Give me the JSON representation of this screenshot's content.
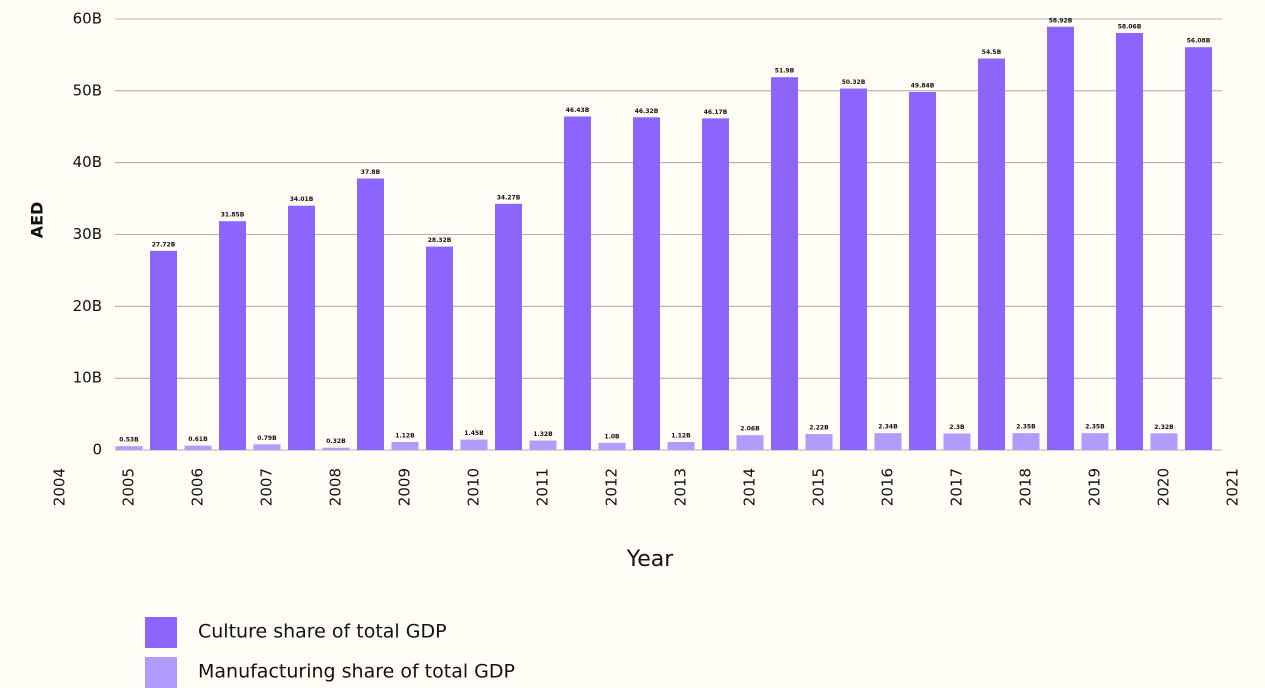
{
  "chart_data": {
    "type": "bar",
    "x_label": "Year",
    "y_label": "AED",
    "xlim": [
      2004,
      2021
    ],
    "xticks": [
      2004,
      2005,
      2006,
      2007,
      2008,
      2009,
      2010,
      2011,
      2012,
      2013,
      2014,
      2015,
      2016,
      2017,
      2018,
      2019,
      2020,
      2021
    ],
    "ylim": [
      0,
      60
    ],
    "yticks": [
      0,
      {
        "value": 10,
        "label": "10B"
      },
      {
        "value": 20,
        "label": "20B"
      },
      {
        "value": 30,
        "label": "30B"
      },
      {
        "value": 40,
        "label": "40B"
      },
      {
        "value": 50,
        "label": "50B"
      },
      {
        "value": 60,
        "label": "60B"
      }
    ],
    "grid": true,
    "legend": "bottom-left",
    "series": [
      {
        "name": "Culture share of total GDP",
        "color": "#8c66fc",
        "x": [
          2005.5,
          2006.5,
          2007.5,
          2008.5,
          2009.5,
          2010.5,
          2011.5,
          2012.5,
          2013.5,
          2014.5,
          2015.5,
          2016.5,
          2017.5,
          2018.5,
          2019.5,
          2020.5
        ],
        "values": [
          27.72,
          31.85,
          34.01,
          37.8,
          28.32,
          34.27,
          46.43,
          46.32,
          46.17,
          51.9,
          50.32,
          49.84,
          54.5,
          58.92,
          58.06,
          56.08
        ],
        "value_labels": [
          "27.72B",
          "31.85B",
          "34.01B",
          "37.8B",
          "28.32B",
          "34.27B",
          "46.43B",
          "46.32B",
          "46.17B",
          "51.9B",
          "50.32B",
          "49.84B",
          "54.5B",
          "58.92B",
          "58.06B",
          "56.08B"
        ]
      },
      {
        "name": "Manufacturing share of total GDP",
        "color": "#b19bfb",
        "x": [
          2005,
          2006,
          2007,
          2008,
          2009,
          2010,
          2011,
          2012,
          2013,
          2014,
          2015,
          2016,
          2017,
          2018,
          2019,
          2020
        ],
        "values": [
          0.53,
          0.61,
          0.79,
          0.32,
          1.12,
          1.45,
          1.32,
          1.0,
          1.12,
          2.06,
          2.22,
          2.34,
          2.3,
          2.35,
          2.35,
          2.32
        ],
        "value_labels": [
          "0.53B",
          "0.61B",
          "0.79B",
          "0.32B",
          "1.12B",
          "1.45B",
          "1.32B",
          "1.0B",
          "1.12B",
          "2.06B",
          "2.22B",
          "2.34B",
          "2.3B",
          "2.35B",
          "2.35B",
          "2.32B"
        ]
      }
    ]
  }
}
